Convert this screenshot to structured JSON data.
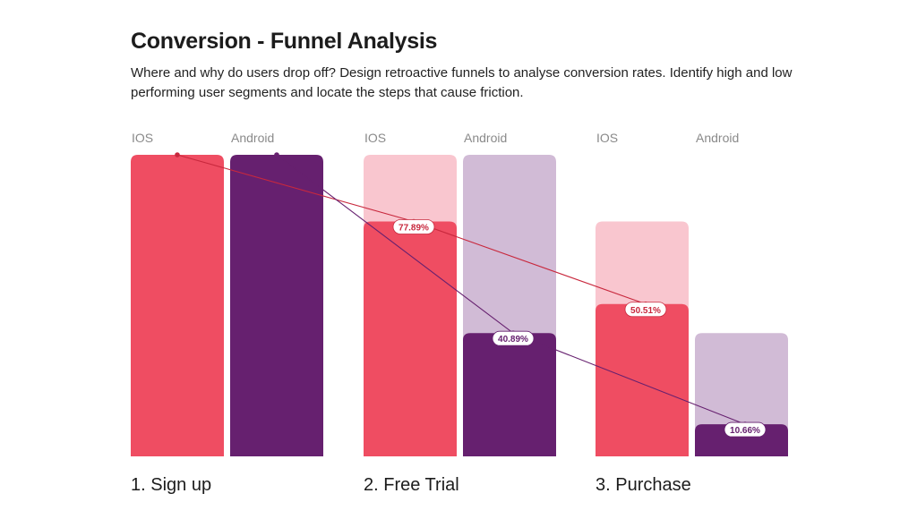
{
  "title": "Conversion - Funnel Analysis",
  "subtitle": "Where and why do users drop off? Design retroactive funnels to analyse conversion rates. Identify high and low performing user segments and locate the steps that cause friction.",
  "colors": {
    "ios": "#ef4d62",
    "ios_light": "#f9c6cf",
    "android": "#66206f",
    "android_light": "#d1bbd6",
    "ios_line": "#c8283d",
    "android_line": "#66206f",
    "label_text_ios": "#c8283d",
    "label_text_android": "#66206f"
  },
  "chart_data": {
    "type": "bar",
    "categories": [
      "1. Sign up",
      "2. Free Trial",
      "3. Purchase"
    ],
    "series": [
      {
        "name": "IOS",
        "values": [
          100,
          77.89,
          50.51
        ],
        "prev_values": [
          null,
          100,
          77.89
        ],
        "labels": [
          "",
          "77.89%",
          "50.51%"
        ]
      },
      {
        "name": "Android",
        "values": [
          100,
          40.89,
          10.66
        ],
        "prev_values": [
          null,
          100,
          40.89
        ],
        "labels": [
          "",
          "40.89%",
          "10.66%"
        ]
      }
    ],
    "ylim": [
      0,
      100
    ],
    "grid": false
  }
}
